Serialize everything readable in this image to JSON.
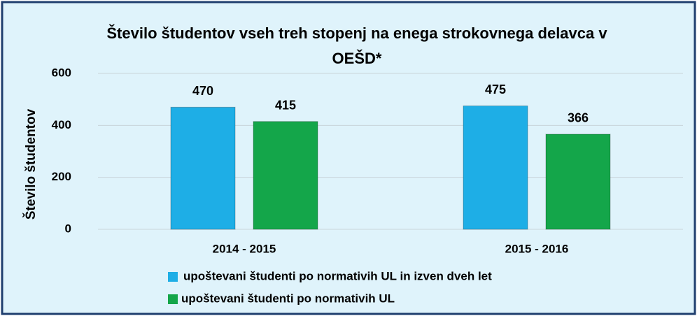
{
  "chart_data": {
    "type": "bar",
    "title": "Število študentov vseh treh stopenj na enega strokovnega delavca v OEŠD*",
    "ylabel": "Število študentov",
    "categories": [
      "2014 - 2015",
      "2015 - 2016"
    ],
    "series": [
      {
        "name": "upoštevani študenti po normativih UL in izven dveh let",
        "color": "#1eaee6",
        "values": [
          470,
          475
        ]
      },
      {
        "name": "upoštevani študenti po normativih UL",
        "color": "#14a64a",
        "values": [
          415,
          366
        ]
      }
    ],
    "ylim": [
      0,
      600
    ],
    "yticks": [
      0,
      200,
      400,
      600
    ],
    "grid": true
  }
}
